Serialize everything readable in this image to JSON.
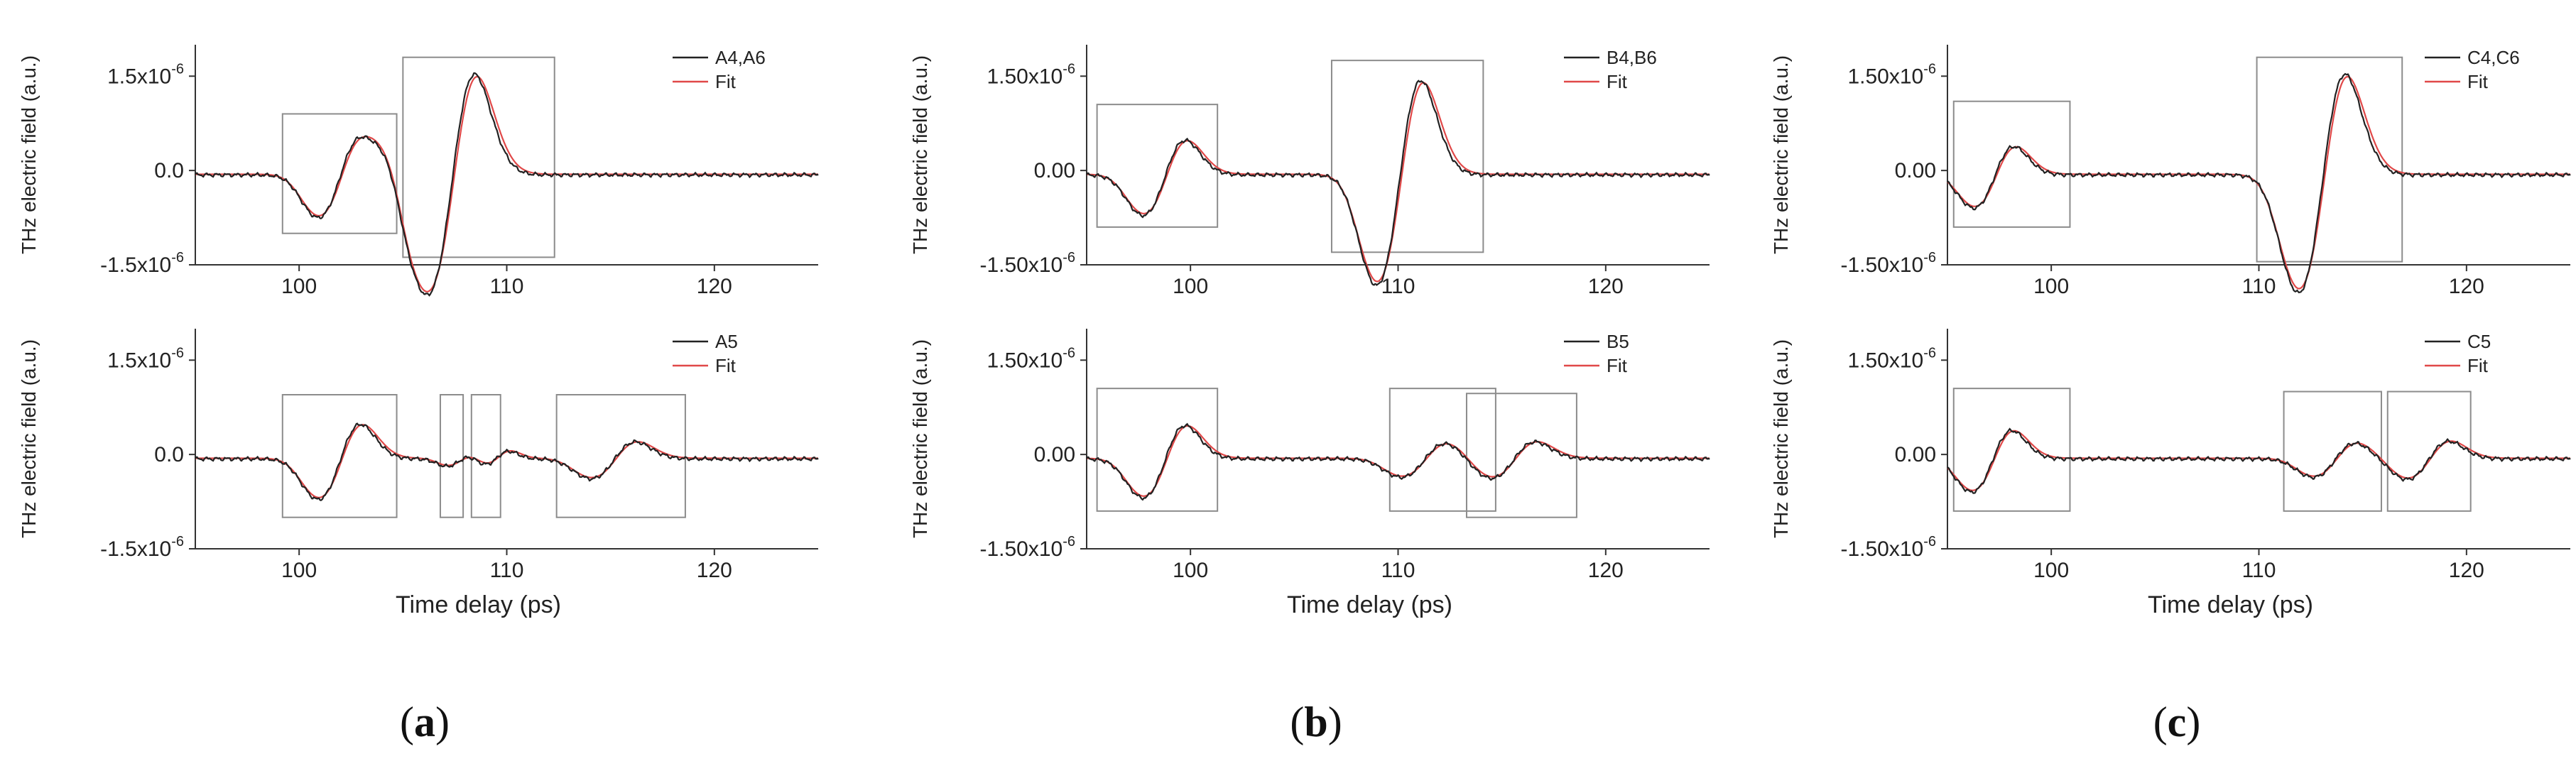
{
  "figure": {
    "panel_labels": [
      {
        "open": "(",
        "letter": "a",
        "close": ")"
      },
      {
        "open": "(",
        "letter": "b",
        "close": ")"
      },
      {
        "open": "(",
        "letter": "c",
        "close": ")"
      }
    ]
  },
  "colors": {
    "measured": "#222222",
    "fit": "#e04848",
    "box": "#8c8c8c",
    "axis": "#333333"
  },
  "chart_data": [
    {
      "type": "line",
      "id": "a-top",
      "column": 0,
      "row": 0,
      "ylabel": "THz electric field (a.u.)",
      "xlabel": "",
      "xlim": [
        95,
        125
      ],
      "ylim": [
        -1.5,
        2.0
      ],
      "xticks": [
        {
          "v": 100,
          "label": "100"
        },
        {
          "v": 110,
          "label": "110"
        },
        {
          "v": 120,
          "label": "120"
        }
      ],
      "yticks": [
        {
          "v": 1.5,
          "mant": "1.5x10",
          "exp": "-6"
        },
        {
          "v": 0,
          "mant": "0.0",
          "exp": ""
        },
        {
          "v": -1.5,
          "mant": "-1.5x10",
          "exp": "-6"
        }
      ],
      "legend": [
        "A4,A6",
        "Fit"
      ],
      "pulses": [
        {
          "t": 102,
          "a": 0.58,
          "w": 0.95
        },
        {
          "t": 104.7,
          "a": -0.18,
          "w": 0.6
        },
        {
          "t": 107.4,
          "a": 1.6,
          "w": 1.05
        }
      ],
      "boxes": [
        [
          99.2,
          104.7,
          -1.0,
          0.9
        ],
        [
          105.0,
          112.3,
          -1.38,
          1.8
        ]
      ]
    },
    {
      "type": "line",
      "id": "a-bottom",
      "column": 0,
      "row": 1,
      "ylabel": "THz electric field (a.u.)",
      "xlabel": "Time delay (ps)",
      "xlim": [
        95,
        125
      ],
      "ylim": [
        -1.5,
        2.0
      ],
      "xticks": [
        {
          "v": 100,
          "label": "100"
        },
        {
          "v": 110,
          "label": "110"
        },
        {
          "v": 120,
          "label": "120"
        }
      ],
      "yticks": [
        {
          "v": 1.5,
          "mant": "1.5x10",
          "exp": "-6"
        },
        {
          "v": 0,
          "mant": "0.0",
          "exp": ""
        },
        {
          "v": -1.5,
          "mant": "-1.5x10",
          "exp": "-6"
        }
      ],
      "legend": [
        "A5",
        "Fit"
      ],
      "pulses": [
        {
          "t": 102,
          "a": 0.55,
          "w": 0.95
        },
        {
          "t": 107.8,
          "a": 0.1,
          "w": 0.6
        },
        {
          "t": 109.5,
          "a": 0.12,
          "w": 0.6
        },
        {
          "t": 115.2,
          "a": 0.27,
          "w": 1.0
        }
      ],
      "boxes": [
        [
          99.2,
          104.7,
          -1.0,
          0.95
        ],
        [
          106.8,
          107.9,
          -1.0,
          0.95
        ],
        [
          108.3,
          109.7,
          -1.0,
          0.95
        ],
        [
          112.4,
          118.6,
          -1.0,
          0.95
        ]
      ]
    },
    {
      "type": "line",
      "id": "b-top",
      "column": 1,
      "row": 0,
      "ylabel": "THz electric field (a.u.)",
      "xlabel": "",
      "xlim": [
        95,
        125
      ],
      "ylim": [
        -1.5,
        2.0
      ],
      "xticks": [
        {
          "v": 100,
          "label": "100"
        },
        {
          "v": 110,
          "label": "110"
        },
        {
          "v": 120,
          "label": "120"
        }
      ],
      "yticks": [
        {
          "v": 1.5,
          "mant": "1.50x10",
          "exp": "-6"
        },
        {
          "v": 0,
          "mant": "0.00",
          "exp": ""
        },
        {
          "v": -1.5,
          "mant": "-1.50x10",
          "exp": "-6"
        }
      ],
      "legend": [
        "B4,B6",
        "Fit"
      ],
      "pulses": [
        {
          "t": 98.8,
          "a": 0.55,
          "w": 0.95
        },
        {
          "t": 110.1,
          "a": 1.5,
          "w": 1.0
        }
      ],
      "boxes": [
        [
          95.5,
          101.3,
          -0.9,
          1.05
        ],
        [
          106.8,
          114.1,
          -1.3,
          1.75
        ]
      ]
    },
    {
      "type": "line",
      "id": "b-bottom",
      "column": 1,
      "row": 1,
      "ylabel": "THz electric field (a.u.)",
      "xlabel": "Time delay (ps)",
      "xlim": [
        95,
        125
      ],
      "ylim": [
        -1.5,
        2.0
      ],
      "xticks": [
        {
          "v": 100,
          "label": "100"
        },
        {
          "v": 110,
          "label": "110"
        },
        {
          "v": 120,
          "label": "120"
        }
      ],
      "yticks": [
        {
          "v": 1.5,
          "mant": "1.50x10",
          "exp": "-6"
        },
        {
          "v": 0,
          "mant": "0.00",
          "exp": ""
        },
        {
          "v": -1.5,
          "mant": "-1.50x10",
          "exp": "-6"
        }
      ],
      "legend": [
        "B5",
        "Fit"
      ],
      "pulses": [
        {
          "t": 98.8,
          "a": 0.53,
          "w": 0.95
        },
        {
          "t": 111.3,
          "a": 0.25,
          "w": 1.0
        },
        {
          "t": 115.6,
          "a": 0.27,
          "w": 1.0
        }
      ],
      "boxes": [
        [
          95.5,
          101.3,
          -0.9,
          1.05
        ],
        [
          109.6,
          114.7,
          -0.9,
          1.05
        ],
        [
          113.3,
          118.6,
          -1.0,
          0.97
        ]
      ]
    },
    {
      "type": "line",
      "id": "c-top",
      "column": 2,
      "row": 0,
      "ylabel": "THz electric field (a.u.)",
      "xlabel": "",
      "xlim": [
        95,
        125
      ],
      "ylim": [
        -1.5,
        2.0
      ],
      "xticks": [
        {
          "v": 100,
          "label": "100"
        },
        {
          "v": 110,
          "label": "110"
        },
        {
          "v": 120,
          "label": "120"
        }
      ],
      "yticks": [
        {
          "v": 1.5,
          "mant": "1.50x10",
          "exp": "-6"
        },
        {
          "v": 0,
          "mant": "0.00",
          "exp": ""
        },
        {
          "v": -1.5,
          "mant": "-1.50x10",
          "exp": "-6"
        }
      ],
      "legend": [
        "C4,C6",
        "Fit"
      ],
      "pulses": [
        {
          "t": 97.3,
          "a": 0.45,
          "w": 0.9
        },
        {
          "t": 113.1,
          "a": 1.6,
          "w": 1.05
        }
      ],
      "boxes": [
        [
          95.3,
          100.9,
          -0.9,
          1.1
        ],
        [
          109.9,
          116.9,
          -1.45,
          1.8
        ]
      ]
    },
    {
      "type": "line",
      "id": "c-bottom",
      "column": 2,
      "row": 1,
      "ylabel": "THz electric field (a.u.)",
      "xlabel": "Time delay (ps)",
      "xlim": [
        95,
        125
      ],
      "ylim": [
        -1.5,
        2.0
      ],
      "xticks": [
        {
          "v": 100,
          "label": "100"
        },
        {
          "v": 110,
          "label": "110"
        },
        {
          "v": 120,
          "label": "120"
        }
      ],
      "yticks": [
        {
          "v": 1.5,
          "mant": "1.50x10",
          "exp": "-6"
        },
        {
          "v": 0,
          "mant": "0.00",
          "exp": ""
        },
        {
          "v": -1.5,
          "mant": "-1.50x10",
          "exp": "-6"
        }
      ],
      "legend": [
        "C5",
        "Fit"
      ],
      "pulses": [
        {
          "t": 97.2,
          "a": 0.45,
          "w": 0.9
        },
        {
          "t": 113.7,
          "a": 0.25,
          "w": 0.95
        },
        {
          "t": 118.2,
          "a": 0.28,
          "w": 0.95
        }
      ],
      "boxes": [
        [
          95.3,
          100.9,
          -0.9,
          1.05
        ],
        [
          111.2,
          115.9,
          -0.9,
          1.0
        ],
        [
          116.2,
          120.2,
          -0.9,
          1.0
        ]
      ]
    }
  ]
}
